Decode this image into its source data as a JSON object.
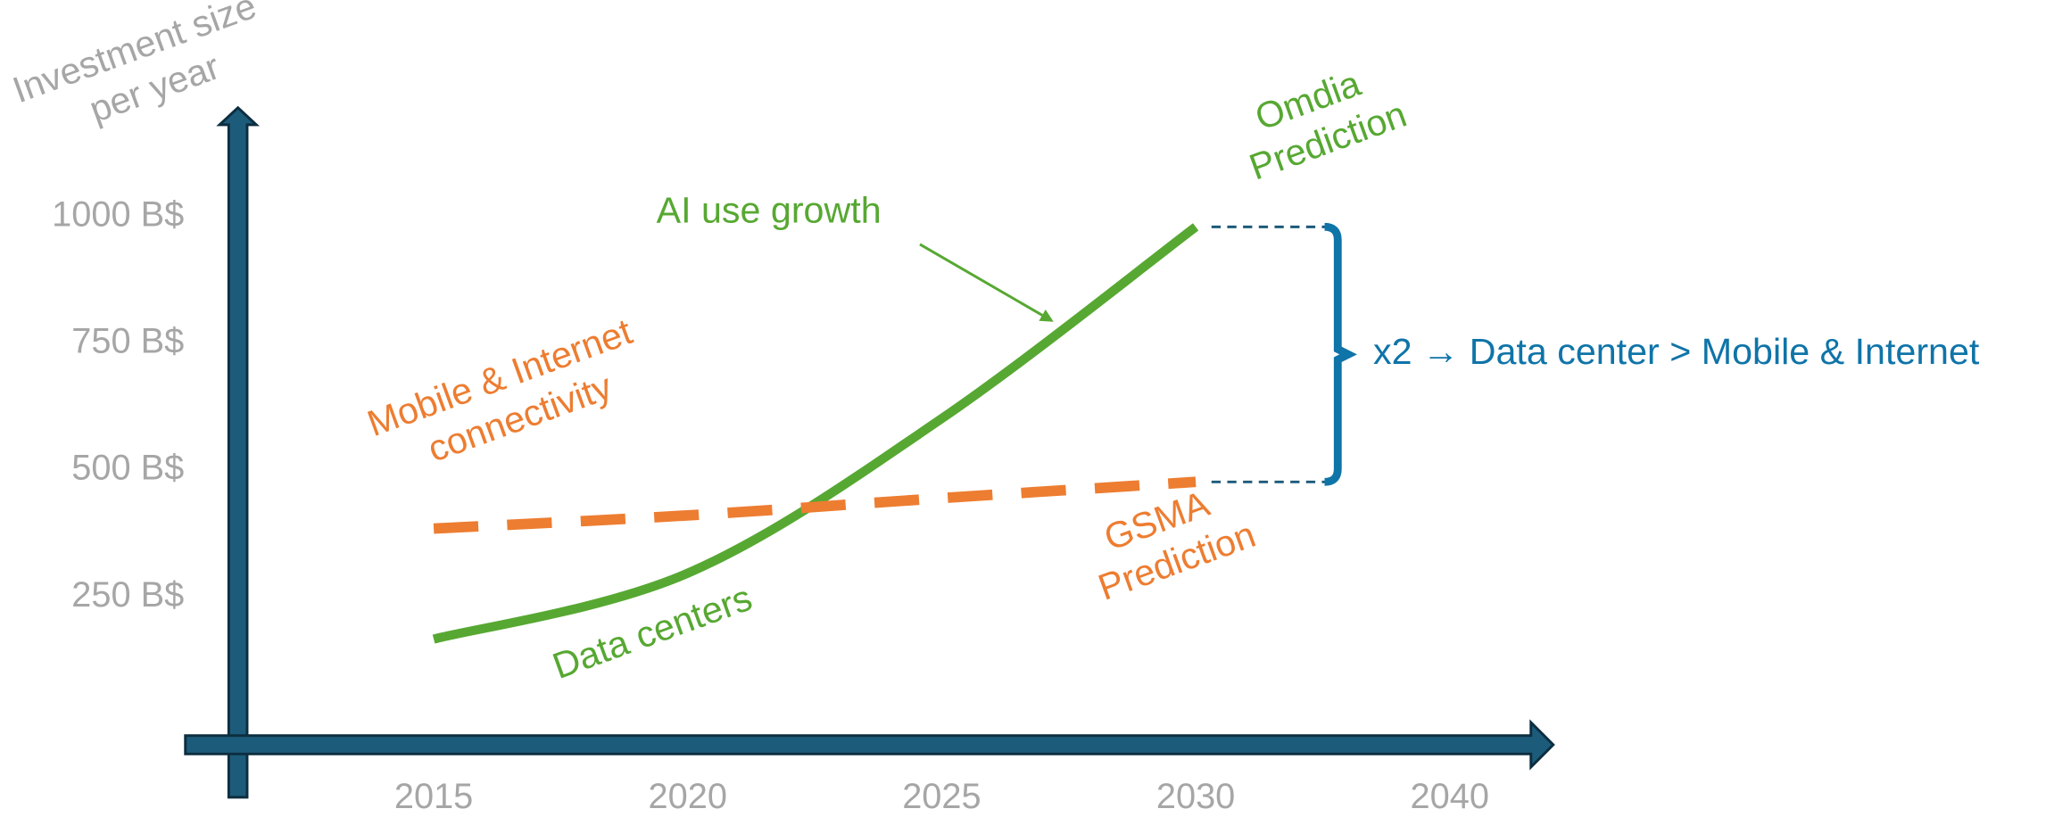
{
  "chart_data": {
    "type": "line",
    "ylabel": [
      "Investment size",
      "per year"
    ],
    "categories": [
      "2015",
      "2020",
      "2025",
      "2030",
      "2040"
    ],
    "series": [
      {
        "name": "Data centers",
        "color": "#57a832",
        "style": "solid",
        "values": [
          167,
          297,
          602,
          980,
          null
        ]
      },
      {
        "name": "Mobile & Internet connectivity",
        "color": "#ed7d31",
        "style": "dashed",
        "values": [
          385,
          411,
          445,
          477,
          null
        ]
      }
    ],
    "ylim": [
      -145,
      1215
    ],
    "yticks": [
      {
        "value": 250,
        "label": "250 B$"
      },
      {
        "value": 500,
        "label": "500 B$"
      },
      {
        "value": 750,
        "label": "750 B$"
      },
      {
        "value": 1000,
        "label": "1000 B$"
      }
    ],
    "annotations": {
      "ai_growth": "AI use growth",
      "omdia": [
        "Omdia",
        "Prediction"
      ],
      "mobile": [
        "Mobile & Internet",
        "connectivity"
      ],
      "gsma": [
        "GSMA",
        "Prediction"
      ],
      "data_centers": "Data centers",
      "comparison": "x2 → Data center > Mobile & Internet"
    }
  }
}
